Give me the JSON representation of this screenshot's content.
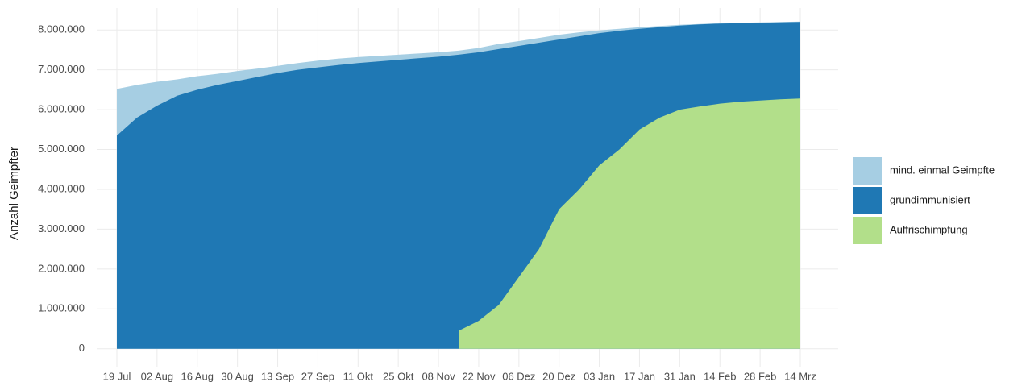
{
  "chart_data": {
    "type": "area",
    "y_label": "Anzahl Geimpfter",
    "categories": [
      "19 Jul",
      null,
      "02 Aug",
      null,
      "16 Aug",
      null,
      "30 Aug",
      null,
      "13 Sep",
      null,
      "27 Sep",
      null,
      "11 Okt",
      null,
      "25 Okt",
      null,
      "08 Nov",
      null,
      "22 Nov",
      null,
      "06 Dez",
      null,
      "20 Dez",
      null,
      "03 Jan",
      null,
      "17 Jan",
      null,
      "31 Jan",
      null,
      "14 Feb",
      null,
      "28 Feb",
      null,
      "14 Mrz"
    ],
    "series": [
      {
        "name": "mind. einmal Geimpfte",
        "color": "#a6cee3",
        "values": [
          6520000,
          6620000,
          6700000,
          6760000,
          6840000,
          6900000,
          6970000,
          7030000,
          7100000,
          7170000,
          7230000,
          7280000,
          7320000,
          7350000,
          7380000,
          7410000,
          7440000,
          7480000,
          7550000,
          7650000,
          7720000,
          7800000,
          7880000,
          7940000,
          7990000,
          8030000,
          8070000,
          8100000,
          8130000,
          8150000,
          8170000,
          8180000,
          8190000,
          8200000,
          8210000
        ]
      },
      {
        "name": "grundimmunisiert",
        "color": "#1f78b4",
        "values": [
          5350000,
          5800000,
          6100000,
          6350000,
          6500000,
          6620000,
          6720000,
          6820000,
          6920000,
          7000000,
          7060000,
          7120000,
          7170000,
          7210000,
          7250000,
          7290000,
          7330000,
          7380000,
          7440000,
          7520000,
          7600000,
          7680000,
          7760000,
          7840000,
          7920000,
          7980000,
          8030000,
          8070000,
          8110000,
          8140000,
          8160000,
          8170000,
          8180000,
          8190000,
          8200000
        ]
      },
      {
        "name": "Auffrischimpfung",
        "color": "#b2df8a",
        "values": [
          null,
          null,
          null,
          null,
          null,
          null,
          null,
          null,
          null,
          null,
          null,
          null,
          null,
          null,
          null,
          null,
          null,
          450000,
          700000,
          1100000,
          1800000,
          2500000,
          3500000,
          4000000,
          4600000,
          5000000,
          5500000,
          5800000,
          6000000,
          6080000,
          6150000,
          6200000,
          6230000,
          6260000,
          6280000
        ]
      }
    ],
    "ylim": [
      -450000,
      8550000
    ],
    "yticks": [
      0,
      {
        "value": 1000000,
        "label": "1.000.000"
      },
      {
        "value": 2000000,
        "label": "2.000.000"
      },
      {
        "value": 3000000,
        "label": "3.000.000"
      },
      {
        "value": 4000000,
        "label": "4.000.000"
      },
      {
        "value": 5000000,
        "label": "5.000.000"
      },
      {
        "value": 6000000,
        "label": "6.000.000"
      },
      {
        "value": 7000000,
        "label": "7.000.000"
      },
      {
        "value": 8000000,
        "label": "8.000.000"
      }
    ],
    "grid": true
  }
}
